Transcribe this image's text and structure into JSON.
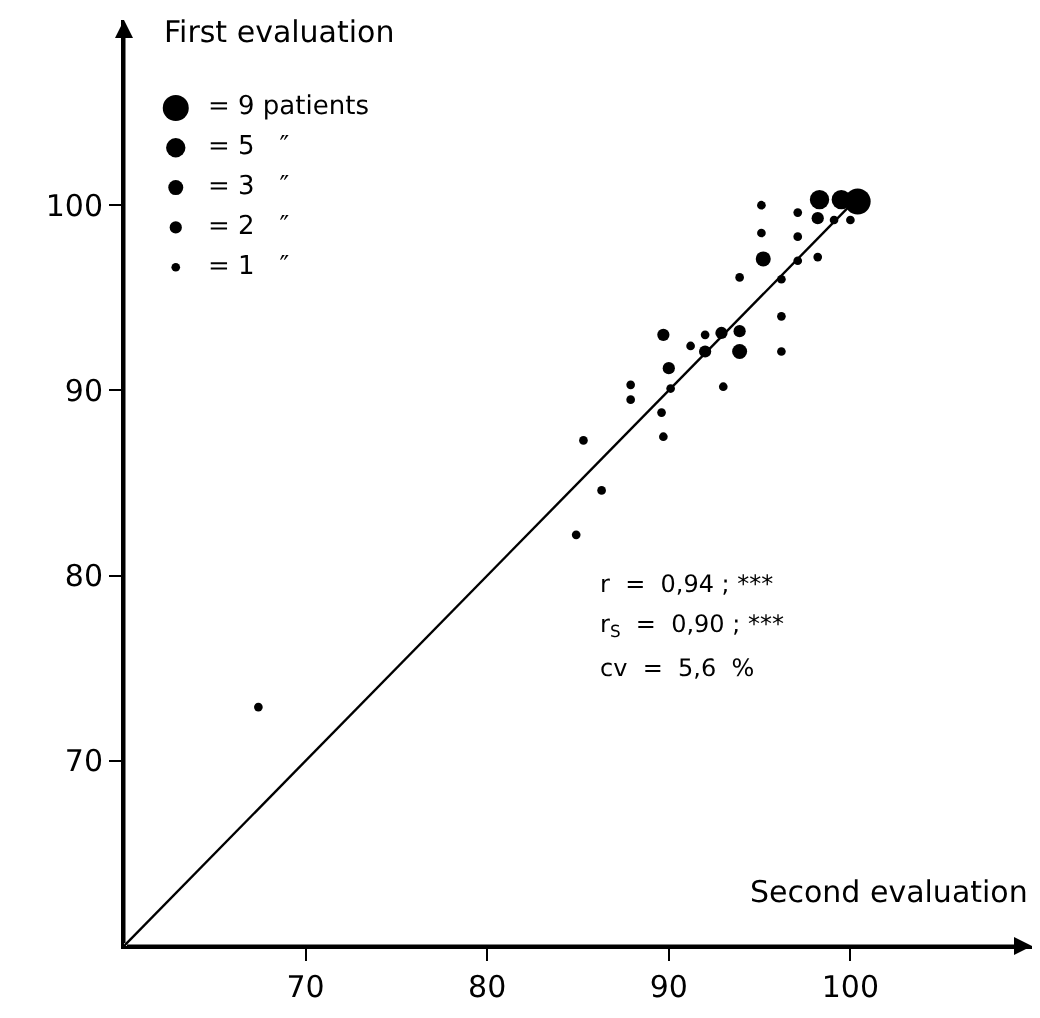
{
  "chart_data": {
    "type": "bubble",
    "xlabel": "Second evaluation",
    "ylabel": "First evaluation",
    "xlim": [
      60,
      110
    ],
    "ylim": [
      60,
      110
    ],
    "xticks": [
      70,
      80,
      90,
      100
    ],
    "yticks": [
      70,
      80,
      90,
      100
    ],
    "grid": false,
    "marker": "circle",
    "size_legend": [
      {
        "value": 9,
        "label": "= 9 patients"
      },
      {
        "value": 5,
        "label": "= 5   ″"
      },
      {
        "value": 3,
        "label": "= 3   ″"
      },
      {
        "value": 2,
        "label": "= 2   ″"
      },
      {
        "value": 1,
        "label": "= 1   ″"
      }
    ],
    "series": [
      {
        "type": "bubble",
        "color": "#000000",
        "x": [
          98.3,
          99.5,
          100.4,
          95.1,
          97.1,
          98.2,
          99.1,
          100,
          95.1,
          97.1,
          95.2,
          97.1,
          98.2,
          93.9,
          96.2,
          96.2,
          96.2,
          89.7,
          92.0,
          92.9,
          93.9,
          91.2,
          92.0,
          93.9,
          90.0,
          90.1,
          87.9,
          87.9,
          93.0,
          89.6,
          89.7,
          85.3,
          86.3,
          84.9,
          67.4
        ],
        "values": [
          100.3,
          100.3,
          100.2,
          100,
          99.6,
          99.3,
          99.2,
          99.2,
          98.5,
          98.3,
          97.1,
          97.0,
          97.2,
          96.1,
          96.0,
          94.0,
          92.1,
          93.0,
          93.0,
          93.1,
          93.2,
          92.4,
          92.1,
          92.1,
          91.2,
          90.1,
          90.3,
          89.5,
          90.2,
          88.8,
          87.5,
          87.3,
          84.6,
          82.2,
          72.9
        ],
        "sizes": [
          5,
          5,
          9,
          1,
          1,
          2,
          1,
          1,
          1,
          1,
          3,
          1,
          1,
          1,
          1,
          1,
          1,
          2,
          1,
          2,
          2,
          1,
          2,
          3,
          2,
          1,
          1,
          1,
          1,
          1,
          1,
          1,
          1,
          1,
          1
        ]
      },
      {
        "type": "line",
        "color": "#000000",
        "line_style": "solid",
        "marker": "none",
        "x": [
          60,
          100
        ],
        "values": [
          60,
          100
        ]
      }
    ],
    "annotations": [
      "r  =  0,94 ; ***",
      "r$_{S}$  =  0,90 ; ***",
      "cv  =  5,6  %"
    ]
  }
}
